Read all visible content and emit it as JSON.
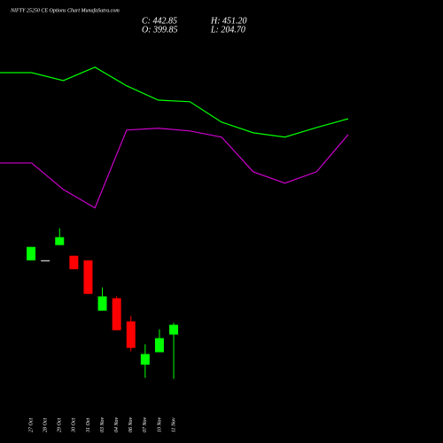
{
  "chart_data": [
    {
      "type": "line",
      "x": [
        0,
        1,
        2,
        3,
        4,
        5,
        6,
        7,
        8,
        9,
        10,
        11
      ],
      "xlim": [
        0,
        11
      ],
      "ylim": [
        0,
        1800
      ],
      "series": [
        {
          "color": "#00ff00",
          "values": [
            1554,
            1554,
            1519,
            1578,
            1496,
            1433,
            1426,
            1336,
            1289,
            1270,
            1312,
            1351
          ]
        },
        {
          "color": "#cc00cc",
          "values": [
            1156,
            1156,
            1039,
            958,
            1301,
            1309,
            1297,
            1270,
            1117,
            1067,
            1117,
            1281
          ]
        }
      ]
    },
    {
      "type": "candlestick",
      "title": "NIFTY 25250 CE Options Chart MunafaSutra.com",
      "ohlc_labels": [
        "C: 442.85",
        "H: 451.20",
        "O: 399.85",
        "L: 204.70"
      ],
      "categories": [
        "27 Oct",
        "28 Oct",
        "29 Oct",
        "30 Oct",
        "31 Oct",
        "03 Nov",
        "04 Nov",
        "06 Nov",
        "07 Nov",
        "10 Nov",
        "11 Nov"
      ],
      "open": [
        727,
        727,
        794,
        747,
        727,
        505,
        560,
        458,
        267,
        322,
        399.85
      ],
      "high": [
        786,
        727,
        868,
        747,
        727,
        607,
        568,
        482,
        357,
        423,
        451.2
      ],
      "low": [
        727,
        727,
        794,
        688,
        579,
        505,
        419,
        326,
        209,
        322,
        204.7
      ],
      "close": [
        786,
        727,
        829,
        688,
        579,
        568,
        419,
        341,
        314,
        384,
        442.85
      ],
      "ylim": [
        0,
        1800
      ],
      "up_color": "#00ff00",
      "down_color": "#ff0000",
      "flat_color": "#ffffff"
    }
  ]
}
